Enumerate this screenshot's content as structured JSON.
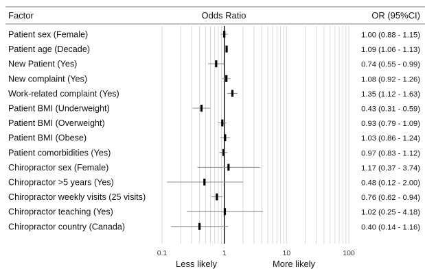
{
  "header": {
    "factor": "Factor",
    "middle": "Odds Ratio",
    "ci": "OR (95%CI)"
  },
  "chart_data": {
    "type": "forest",
    "x_scale": "log",
    "xlim": [
      0.1,
      100
    ],
    "x_ticks": [
      0.1,
      1,
      10,
      100
    ],
    "x_tick_labels": [
      "0.1",
      "1",
      "10",
      "100"
    ],
    "reference_value": 1,
    "grid": "vertical minor log gridlines",
    "direction_labels": {
      "left": "Less likely",
      "right": "More likely"
    },
    "rows": [
      {
        "factor": "Patient sex (Female)",
        "or": 1.0,
        "lo": 0.88,
        "hi": 1.15,
        "ci_text": "1.00 (0.88 - 1.15)"
      },
      {
        "factor": "Patient age (Decade)",
        "or": 1.09,
        "lo": 1.06,
        "hi": 1.13,
        "ci_text": "1.09 (1.06 - 1.13)"
      },
      {
        "factor": "New Patient (Yes)",
        "or": 0.74,
        "lo": 0.55,
        "hi": 0.99,
        "ci_text": "0.74 (0.55 - 0.99)"
      },
      {
        "factor": "New complaint (Yes)",
        "or": 1.08,
        "lo": 0.92,
        "hi": 1.26,
        "ci_text": "1.08 (0.92 - 1.26)"
      },
      {
        "factor": "Work-related complaint (Yes)",
        "or": 1.35,
        "lo": 1.12,
        "hi": 1.63,
        "ci_text": "1.35 (1.12 - 1.63)"
      },
      {
        "factor": "Patient BMI (Underweight)",
        "or": 0.43,
        "lo": 0.31,
        "hi": 0.59,
        "ci_text": "0.43 (0.31 - 0.59)"
      },
      {
        "factor": "Patient BMI (Overweight)",
        "or": 0.93,
        "lo": 0.79,
        "hi": 1.09,
        "ci_text": "0.93 (0.79 - 1.09)"
      },
      {
        "factor": "Patient BMI (Obese)",
        "or": 1.03,
        "lo": 0.86,
        "hi": 1.24,
        "ci_text": "1.03 (0.86 - 1.24)"
      },
      {
        "factor": "Patient comorbidities (Yes)",
        "or": 0.97,
        "lo": 0.83,
        "hi": 1.12,
        "ci_text": "0.97 (0.83 - 1.12)"
      },
      {
        "factor": "Chiropractor sex (Female)",
        "or": 1.17,
        "lo": 0.37,
        "hi": 3.74,
        "ci_text": "1.17 (0.37 - 3.74)"
      },
      {
        "factor": "Chiropractor >5 years (Yes)",
        "or": 0.48,
        "lo": 0.12,
        "hi": 2.0,
        "ci_text": "0.48 (0.12 - 2.00)"
      },
      {
        "factor": "Chiropractor weekly visits (25 visits)",
        "or": 0.76,
        "lo": 0.62,
        "hi": 0.94,
        "ci_text": "0.76 (0.62 - 0.94)"
      },
      {
        "factor": "Chiropractor teaching (Yes)",
        "or": 1.02,
        "lo": 0.25,
        "hi": 4.18,
        "ci_text": "1.02 (0.25 - 4.18)"
      },
      {
        "factor": "Chiropractor country (Canada)",
        "or": 0.4,
        "lo": 0.14,
        "hi": 1.16,
        "ci_text": "0.40 (0.14 - 1.16)"
      }
    ],
    "colors": {
      "marker": "#000000",
      "ci_line": "#8c8c8c",
      "gridline": "#d9d9d9",
      "reference_line": "#000000",
      "rule": "#7f7f7f",
      "text": "#111111"
    }
  }
}
